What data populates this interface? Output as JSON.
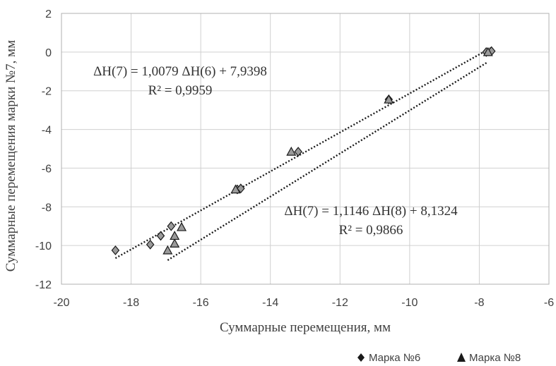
{
  "chart_data": {
    "type": "scatter",
    "xlabel": "Суммарные  перемещения, мм",
    "ylabel": "Суммарные перемещения марки №​7, мм",
    "xlim": [
      -20,
      -6
    ],
    "ylim": [
      -12,
      2
    ],
    "x_ticks": [
      "-20",
      "-18",
      "-16",
      "-14",
      "-12",
      "-10",
      "-8",
      "-6"
    ],
    "y_ticks": [
      "2",
      "0",
      "-2",
      "-4",
      "-6",
      "-8",
      "-10",
      "-12"
    ],
    "grid": true,
    "legend_position": "bottom-right",
    "series": [
      {
        "name": "Марка №6",
        "marker": "diamond",
        "color": "#1a1a1a",
        "points": [
          [
            -18.45,
            -10.25
          ],
          [
            -17.45,
            -9.95
          ],
          [
            -17.15,
            -9.5
          ],
          [
            -16.85,
            -9.0
          ],
          [
            -14.95,
            -7.1
          ],
          [
            -14.85,
            -7.05
          ],
          [
            -13.2,
            -5.15
          ],
          [
            -10.6,
            -2.45
          ],
          [
            -7.8,
            0.0
          ],
          [
            -7.65,
            0.05
          ]
        ]
      },
      {
        "name": "Марка №8",
        "marker": "triangle",
        "color": "#1a1a1a",
        "points": [
          [
            -16.95,
            -10.25
          ],
          [
            -16.75,
            -9.9
          ],
          [
            -16.75,
            -9.5
          ],
          [
            -16.55,
            -9.05
          ],
          [
            -15.0,
            -7.1
          ],
          [
            -13.4,
            -5.15
          ],
          [
            -10.6,
            -2.45
          ],
          [
            -7.75,
            0.0
          ]
        ]
      }
    ],
    "trendlines": [
      {
        "series": "Марка №6",
        "slope": 1.0079,
        "intercept": 7.9398,
        "x_range": [
          -18.45,
          -7.65
        ],
        "equation": "ΔH(7) = 1,0079 ΔH(6) + 7,9398",
        "r2": "R² = 0,9959"
      },
      {
        "series": "Марка №8",
        "slope": 1.1146,
        "intercept": 8.1324,
        "x_range": [
          -16.95,
          -7.75
        ],
        "equation": "ΔH(7) = 1,1146 ΔH(8) + 8,1324",
        "r2": "R² = 0,9866"
      }
    ]
  },
  "legend": {
    "item1_label": "Марка №6",
    "item2_label": "Марка №8",
    "color": "#1a1a1a"
  },
  "colors": {
    "grid": "#d0d0d0",
    "axis": "#8c8c8c",
    "marker": "#1a1a1a"
  }
}
